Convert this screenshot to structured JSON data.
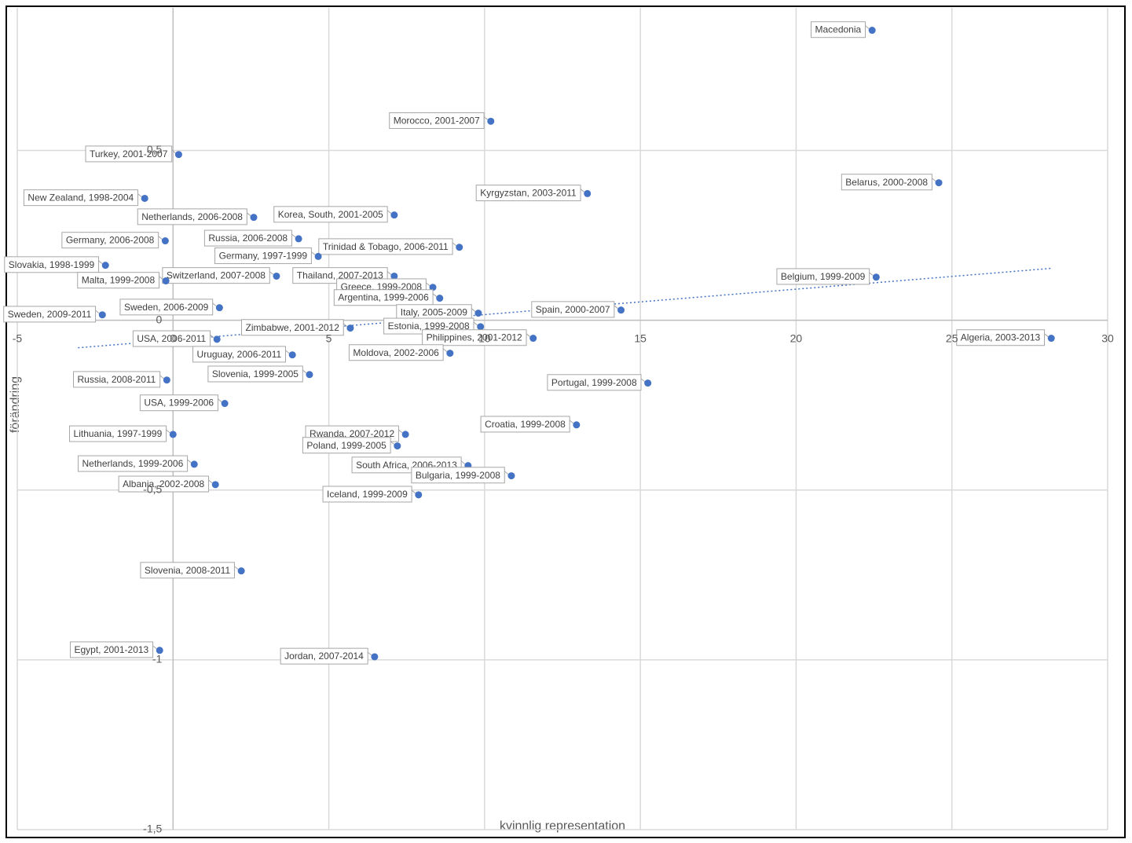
{
  "chart_data": {
    "type": "scatter",
    "x_label": "kvinnlig representation",
    "y_label": "förändring",
    "color": "#4472c4",
    "grid": true,
    "xlim": [
      -5,
      30
    ],
    "xticks": [
      -5,
      0,
      5,
      10,
      15,
      20,
      25,
      30
    ],
    "ylim": [
      -1.5,
      0.92
    ],
    "yticks": [
      {
        "value": -1.5,
        "label": "-1,5"
      },
      -1,
      {
        "value": -0.5,
        "label": "-0,5"
      },
      0,
      {
        "value": 0.5,
        "label": "0,5"
      }
    ],
    "trendline": {
      "x": [
        -3.05,
        28.2
      ],
      "y": [
        -0.081,
        0.153
      ],
      "color": "#4472c4"
    },
    "point_labels": [
      "Macedonia",
      "Morocco, 2001-2007",
      "Turkey, 2001-2007",
      "Belarus, 2000-2008",
      "Kyrgyzstan, 2003-2011",
      "New Zealand, 1998-2004",
      "Netherlands, 2006-2008",
      "Korea, South, 2001-2005",
      "Russia, 2006-2008",
      "Trinidad & Tobago, 2006-2011",
      "Germany, 2006-2008",
      "Germany, 1997-1999",
      "Slovakia, 1998-1999",
      "Switzerland, 2007-2008",
      "Thailand, 2007-2013",
      "Greece, 1999-2008",
      "Argentina, 1999-2006",
      "Belgium, 1999-2009",
      "Malta, 1999-2008",
      "Sweden, 2006-2009",
      "Sweden, 2009-2011",
      "Spain, 2000-2007",
      "Italy, 2005-2009",
      "Estonia, 1999-2008",
      "Zimbabwe, 2001-2012",
      "Philippines, 2001-2012",
      "Algeria, 2003-2013",
      "USA, 2006-2011",
      "Moldova, 2002-2006",
      "Uruguay, 2006-2011",
      "Slovenia, 1999-2005",
      "Russia, 2008-2011",
      "Portugal, 1999-2008",
      "USA, 1999-2006",
      "Croatia, 1999-2008",
      "Lithuania, 1997-1999",
      "Rwanda, 2007-2012",
      "Poland, 1999-2005",
      "Netherlands, 1999-2006",
      "South Africa, 2006-2013",
      "Bulgaria, 1999-2008",
      "Albania, 2002-2008",
      "Iceland, 1999-2009",
      "Slovenia, 2008-2011",
      "Egypt, 2001-2013",
      "Jordan, 2007-2014"
    ],
    "x": [
      22.44,
      10.2,
      0.18,
      24.58,
      13.3,
      -0.91,
      2.59,
      7.1,
      4.03,
      9.19,
      -0.25,
      4.66,
      -2.17,
      3.32,
      7.1,
      8.34,
      8.56,
      22.57,
      -0.23,
      1.49,
      -2.27,
      14.38,
      9.8,
      9.87,
      5.69,
      11.56,
      28.19,
      1.41,
      8.89,
      3.83,
      4.38,
      -0.2,
      15.24,
      1.66,
      12.95,
      0,
      7.46,
      7.2,
      0.68,
      9.47,
      10.86,
      1.36,
      7.88,
      2.19,
      -0.43,
      6.47
    ],
    "values": [
      0.854,
      0.586,
      0.488,
      0.405,
      0.373,
      0.359,
      0.303,
      0.31,
      0.24,
      0.215,
      0.234,
      0.188,
      0.162,
      0.13,
      0.13,
      0.097,
      0.065,
      0.127,
      0.116,
      0.037,
      0.016,
      0.03,
      0.021,
      -0.019,
      -0.023,
      -0.053,
      -0.053,
      -0.056,
      -0.097,
      -0.102,
      -0.16,
      -0.176,
      -0.185,
      -0.245,
      -0.308,
      -0.336,
      -0.336,
      -0.37,
      -0.424,
      -0.428,
      -0.458,
      -0.484,
      -0.514,
      -0.738,
      -0.972,
      -0.991
    ]
  }
}
